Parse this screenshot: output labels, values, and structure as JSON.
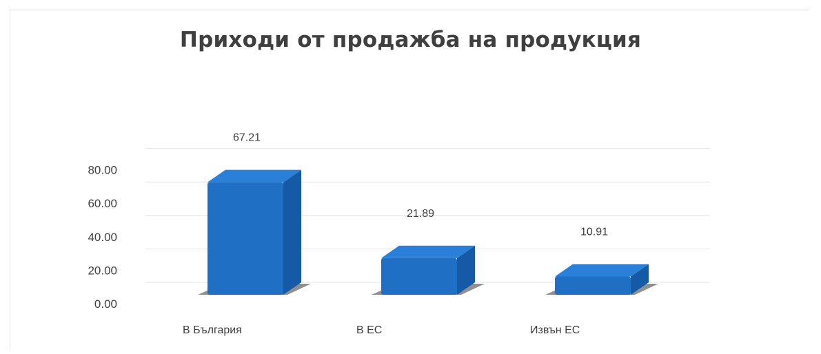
{
  "chart_data": {
    "type": "bar",
    "title": "Приходи от продажба на продукция",
    "categories": [
      "В  България",
      "В ЕС",
      "Извън ЕС"
    ],
    "values": [
      67.21,
      21.89,
      10.91
    ],
    "data_labels": [
      "67.21",
      "21.89",
      "10.91"
    ],
    "y_ticks": [
      "0.00",
      "20.00",
      "40.00",
      "60.00",
      "80.00"
    ],
    "ylim": [
      0,
      80
    ],
    "xlabel": "",
    "ylabel": "",
    "grid": true,
    "style": "3d-column",
    "bar_color": "#1f6fc5",
    "bar_top_color": "#2a80d8",
    "bar_side_color": "#155aa6"
  }
}
